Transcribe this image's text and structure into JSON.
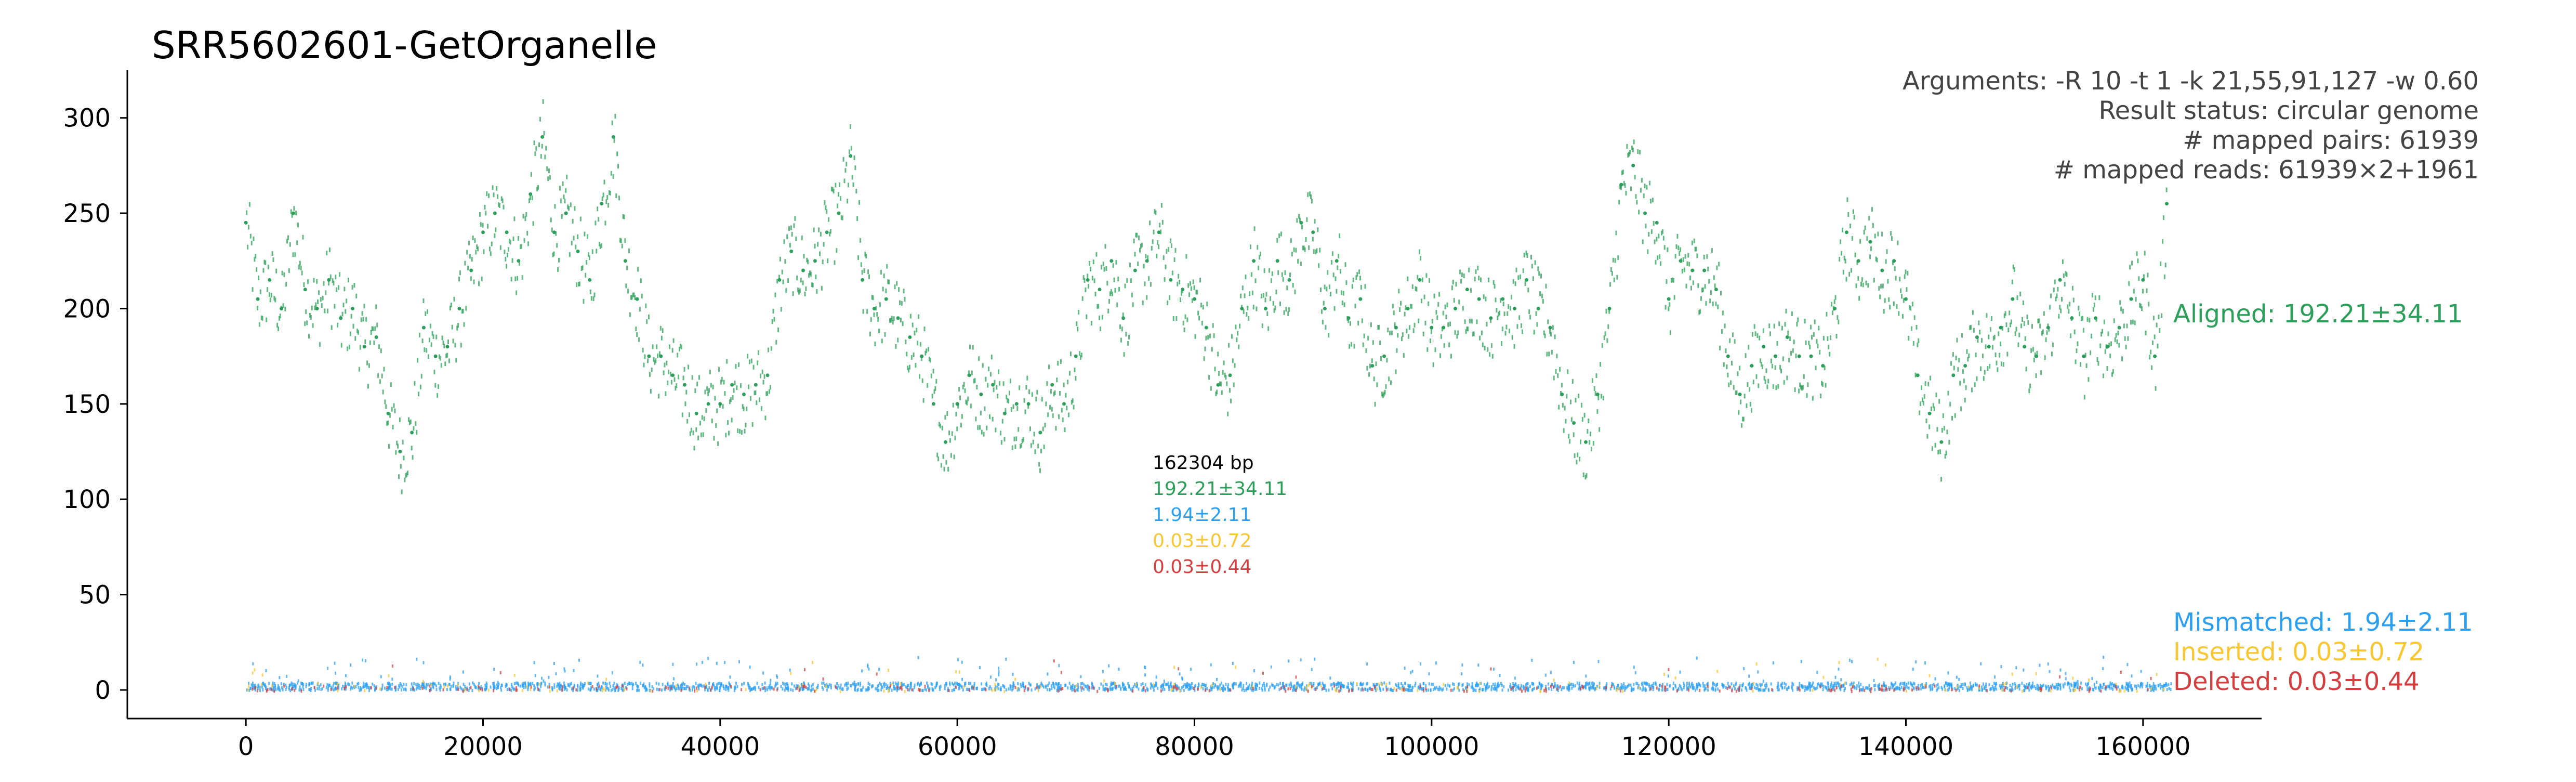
{
  "chart_data": {
    "type": "scatter",
    "title": "SRR5602601-GetOrganelle",
    "xlabel": "",
    "ylabel": "",
    "xlim": [
      -10000,
      170000
    ],
    "ylim": [
      -15,
      325
    ],
    "x_ticks": [
      0,
      20000,
      40000,
      60000,
      80000,
      100000,
      120000,
      140000,
      160000
    ],
    "y_ticks": [
      0,
      50,
      100,
      150,
      200,
      250,
      300
    ],
    "grid": false,
    "genome_length": 162304,
    "arguments": [
      "Arguments: -R 10 -t 1 -k 21,55,91,127 -w 0.60",
      "Result status: circular genome",
      "# mapped pairs: 61939",
      "# mapped reads: 61939×2+1961"
    ],
    "center_stats": [
      "162304 bp",
      "192.21±34.11",
      "1.94±2.11",
      "0.03±0.72",
      "0.03±0.44"
    ],
    "colors": {
      "aligned": "#2ca05a",
      "mismatched": "#2ca0f0",
      "inserted": "#f8c732",
      "deleted": "#d43e3e",
      "axis": "#000000",
      "text": "#444444"
    },
    "series": [
      {
        "name": "Aligned",
        "label": "Aligned: 192.21±34.11",
        "color": "#2ca05a",
        "x": [
          0,
          1000,
          2000,
          3000,
          4000,
          5000,
          6000,
          7000,
          8000,
          9000,
          10000,
          11000,
          12000,
          13000,
          14000,
          15000,
          16000,
          17000,
          18000,
          19000,
          20000,
          21000,
          22000,
          23000,
          24000,
          25000,
          26000,
          27000,
          28000,
          29000,
          30000,
          31000,
          32000,
          33000,
          34000,
          35000,
          36000,
          37000,
          38000,
          39000,
          40000,
          41000,
          42000,
          43000,
          44000,
          45000,
          46000,
          47000,
          48000,
          49000,
          50000,
          51000,
          52000,
          53000,
          54000,
          55000,
          56000,
          57000,
          58000,
          59000,
          60000,
          61000,
          62000,
          63000,
          64000,
          65000,
          66000,
          67000,
          68000,
          69000,
          70000,
          71000,
          72000,
          73000,
          74000,
          75000,
          76000,
          77000,
          78000,
          79000,
          80000,
          81000,
          82000,
          83000,
          84000,
          85000,
          86000,
          87000,
          88000,
          89000,
          90000,
          91000,
          92000,
          93000,
          94000,
          95000,
          96000,
          97000,
          98000,
          99000,
          100000,
          101000,
          102000,
          103000,
          104000,
          105000,
          106000,
          107000,
          108000,
          109000,
          110000,
          111000,
          112000,
          113000,
          114000,
          115000,
          116000,
          117000,
          118000,
          119000,
          120000,
          121000,
          122000,
          123000,
          124000,
          125000,
          126000,
          127000,
          128000,
          129000,
          130000,
          131000,
          132000,
          133000,
          134000,
          135000,
          136000,
          137000,
          138000,
          139000,
          140000,
          141000,
          142000,
          143000,
          144000,
          145000,
          146000,
          147000,
          148000,
          149000,
          150000,
          151000,
          152000,
          153000,
          154000,
          155000,
          156000,
          157000,
          158000,
          159000,
          160000,
          161000,
          162000
        ],
        "y": [
          245,
          205,
          215,
          200,
          250,
          210,
          200,
          215,
          195,
          200,
          180,
          185,
          145,
          125,
          135,
          190,
          175,
          180,
          200,
          220,
          240,
          250,
          240,
          225,
          260,
          290,
          240,
          250,
          230,
          215,
          255,
          290,
          225,
          205,
          175,
          175,
          165,
          160,
          145,
          150,
          150,
          160,
          155,
          160,
          165,
          215,
          230,
          220,
          225,
          240,
          250,
          280,
          215,
          200,
          205,
          195,
          185,
          175,
          150,
          130,
          150,
          165,
          155,
          160,
          145,
          150,
          150,
          135,
          160,
          150,
          175,
          215,
          210,
          225,
          195,
          220,
          225,
          240,
          215,
          210,
          205,
          190,
          160,
          165,
          200,
          225,
          200,
          225,
          215,
          245,
          240,
          200,
          225,
          195,
          205,
          170,
          175,
          190,
          200,
          215,
          190,
          190,
          200,
          210,
          205,
          195,
          205,
          200,
          215,
          200,
          190,
          155,
          140,
          130,
          155,
          200,
          265,
          275,
          250,
          245,
          205,
          225,
          220,
          220,
          210,
          175,
          155,
          170,
          180,
          175,
          185,
          175,
          175,
          170,
          200,
          240,
          225,
          235,
          220,
          225,
          205,
          165,
          145,
          130,
          165,
          170,
          185,
          180,
          190,
          205,
          180,
          175,
          190,
          215,
          195,
          175,
          195,
          180,
          190,
          205,
          215,
          175,
          255
        ]
      },
      {
        "name": "Mismatched",
        "label": "Mismatched: 1.94±2.11",
        "color": "#2ca0f0"
      },
      {
        "name": "Inserted",
        "label": "Inserted: 0.03±0.72",
        "color": "#f8c732"
      },
      {
        "name": "Deleted",
        "label": "Deleted: 0.03±0.44",
        "color": "#d43e3e"
      }
    ]
  }
}
